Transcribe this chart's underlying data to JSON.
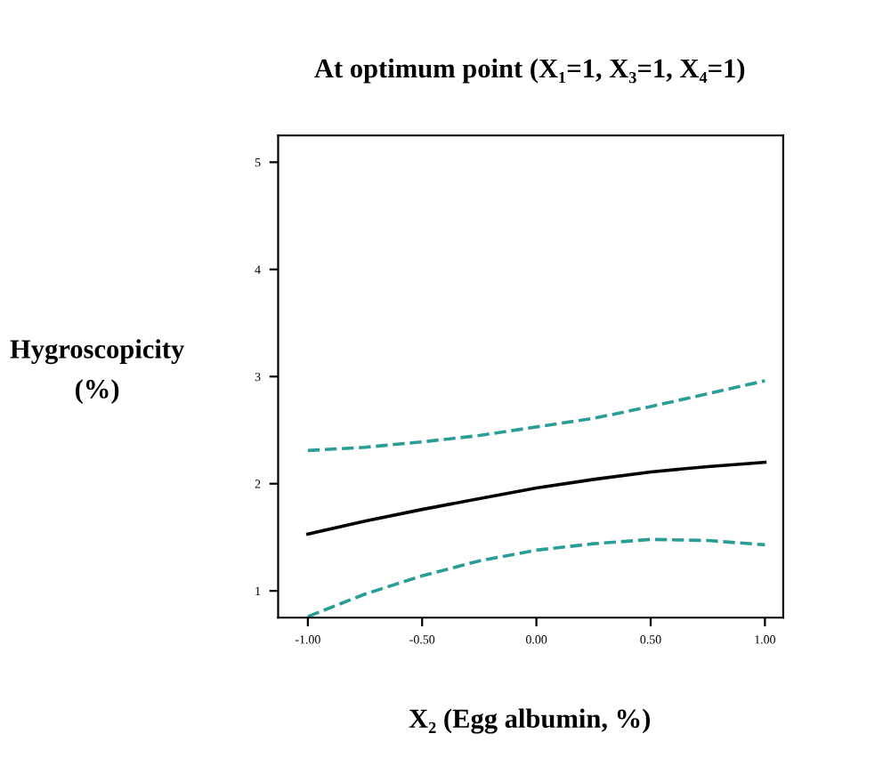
{
  "chart_data": {
    "type": "line",
    "title": "At optimum point (X₁=1, X₃=1, X₄=1)",
    "xlabel": "X₂ (Egg albumin, %)",
    "ylabel": "Hygroscopicity\n(%)",
    "x": [
      -1,
      -0.75,
      -0.5,
      -0.25,
      0,
      0.25,
      0.5,
      0.75,
      1
    ],
    "series": [
      {
        "color": "#000000",
        "line_style": "solid",
        "values": [
          1.53,
          1.65,
          1.76,
          1.86,
          1.96,
          2.04,
          2.11,
          2.16,
          2.2
        ]
      },
      {
        "color": "#2a9d94",
        "line_style": "dashed",
        "values": [
          2.31,
          2.34,
          2.39,
          2.45,
          2.53,
          2.61,
          2.72,
          2.84,
          2.96
        ]
      },
      {
        "color": "#2a9d94",
        "line_style": "dashed",
        "values": [
          0.76,
          0.97,
          1.14,
          1.28,
          1.38,
          1.44,
          1.48,
          1.47,
          1.43
        ]
      }
    ],
    "xlim": [
      -1.13,
      1.08
    ],
    "ylim": [
      0.75,
      5.25
    ],
    "xticks": [
      {
        "value": -1,
        "label": "-1.00"
      },
      {
        "value": -0.5,
        "label": "-0.50"
      },
      {
        "value": 0,
        "label": "0.00"
      },
      {
        "value": 0.5,
        "label": "0.50"
      },
      {
        "value": 1,
        "label": "1.00"
      }
    ],
    "yticks": [
      1,
      2,
      3,
      4,
      5
    ],
    "grid": false,
    "legend": false
  }
}
